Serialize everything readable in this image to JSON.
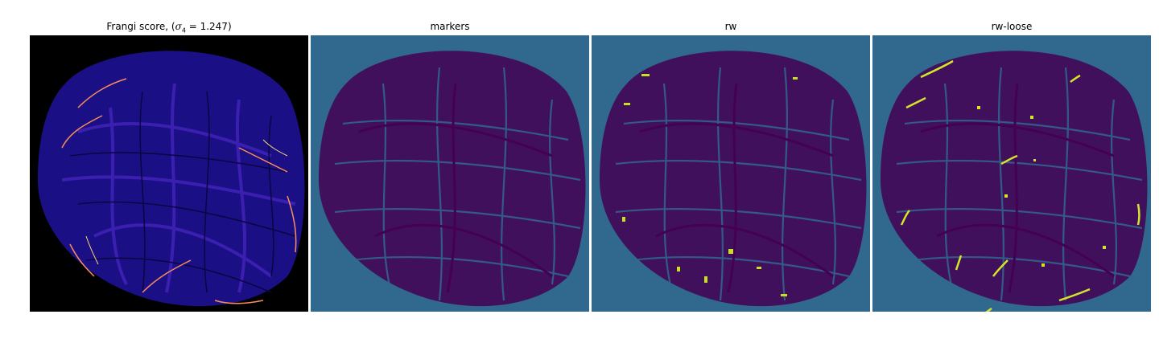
{
  "figure": {
    "panels": [
      {
        "id": "frangi",
        "title_prefix": "Frangi score, (",
        "title_var": "σ",
        "title_sub": "4",
        "title_eq": " = 1.247",
        "title_suffix": ")",
        "colors": {
          "background": "#000000",
          "low": "#1b0f86",
          "mid": "#3a1fb0",
          "high": "#f98e5b",
          "peak": "#fbd87a"
        }
      },
      {
        "id": "markers",
        "title": "markers",
        "colors": {
          "background": "#31688e",
          "vessel": "#440154"
        }
      },
      {
        "id": "rw",
        "title": "rw",
        "colors": {
          "background": "#31688e",
          "vessel": "#440154",
          "highlight": "#c8e020"
        }
      },
      {
        "id": "rw-loose",
        "title": "rw-loose",
        "colors": {
          "background": "#31688e",
          "vessel": "#440154",
          "highlight": "#d3e629"
        }
      }
    ]
  }
}
